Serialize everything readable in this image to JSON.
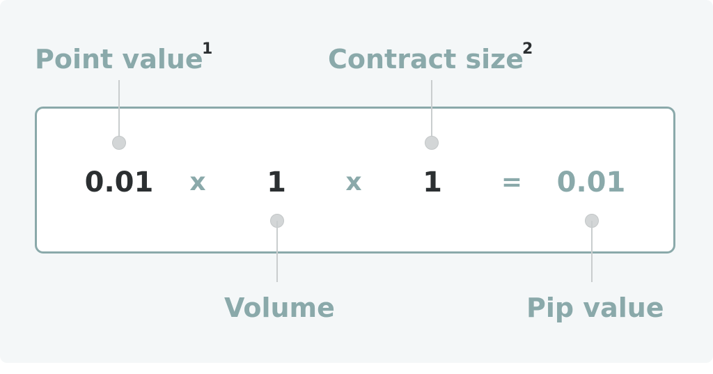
{
  "labels": {
    "point_value": "Point value",
    "point_value_note": "1",
    "contract_size": "Contract size",
    "contract_size_note": "2",
    "volume": "Volume",
    "pip_value": "Pip value"
  },
  "formula": {
    "point_value": "0.01",
    "multiply_1": "x",
    "volume": "1",
    "multiply_2": "x",
    "contract_size": "1",
    "equals": "=",
    "pip_value": "0.01"
  },
  "colors": {
    "accent": "#8aa9aa",
    "text_dark": "#2b2f31",
    "background": "#f4f7f8"
  }
}
